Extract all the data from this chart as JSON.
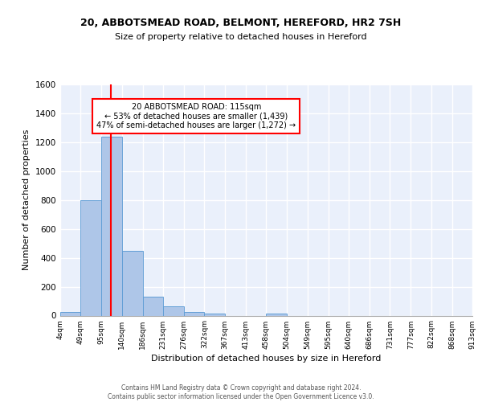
{
  "title1": "20, ABBOTSMEAD ROAD, BELMONT, HEREFORD, HR2 7SH",
  "title2": "Size of property relative to detached houses in Hereford",
  "xlabel": "Distribution of detached houses by size in Hereford",
  "ylabel": "Number of detached properties",
  "bar_color": "#aec6e8",
  "bar_edge_color": "#5b9bd5",
  "background_color": "#eaf0fb",
  "grid_color": "white",
  "bin_edges": [
    4,
    49,
    95,
    140,
    186,
    231,
    276,
    322,
    367,
    413,
    458,
    504,
    549,
    595,
    640,
    686,
    731,
    777,
    822,
    868,
    913
  ],
  "bin_labels": [
    "4sqm",
    "49sqm",
    "95sqm",
    "140sqm",
    "186sqm",
    "231sqm",
    "276sqm",
    "322sqm",
    "367sqm",
    "413sqm",
    "458sqm",
    "504sqm",
    "549sqm",
    "595sqm",
    "640sqm",
    "686sqm",
    "731sqm",
    "777sqm",
    "822sqm",
    "868sqm",
    "913sqm"
  ],
  "counts": [
    25,
    800,
    1240,
    450,
    130,
    65,
    25,
    15,
    0,
    0,
    15,
    0,
    0,
    0,
    0,
    0,
    0,
    0,
    0,
    0
  ],
  "vline_x": 115,
  "vline_color": "red",
  "annotation_text": "20 ABBOTSMEAD ROAD: 115sqm\n← 53% of detached houses are smaller (1,439)\n47% of semi-detached houses are larger (1,272) →",
  "annotation_box_color": "white",
  "annotation_box_edge": "red",
  "ylim": [
    0,
    1600
  ],
  "yticks": [
    0,
    200,
    400,
    600,
    800,
    1000,
    1200,
    1400,
    1600
  ],
  "footnote": "Contains HM Land Registry data © Crown copyright and database right 2024.\nContains public sector information licensed under the Open Government Licence v3.0.",
  "title1_fontsize": 9,
  "title2_fontsize": 8
}
